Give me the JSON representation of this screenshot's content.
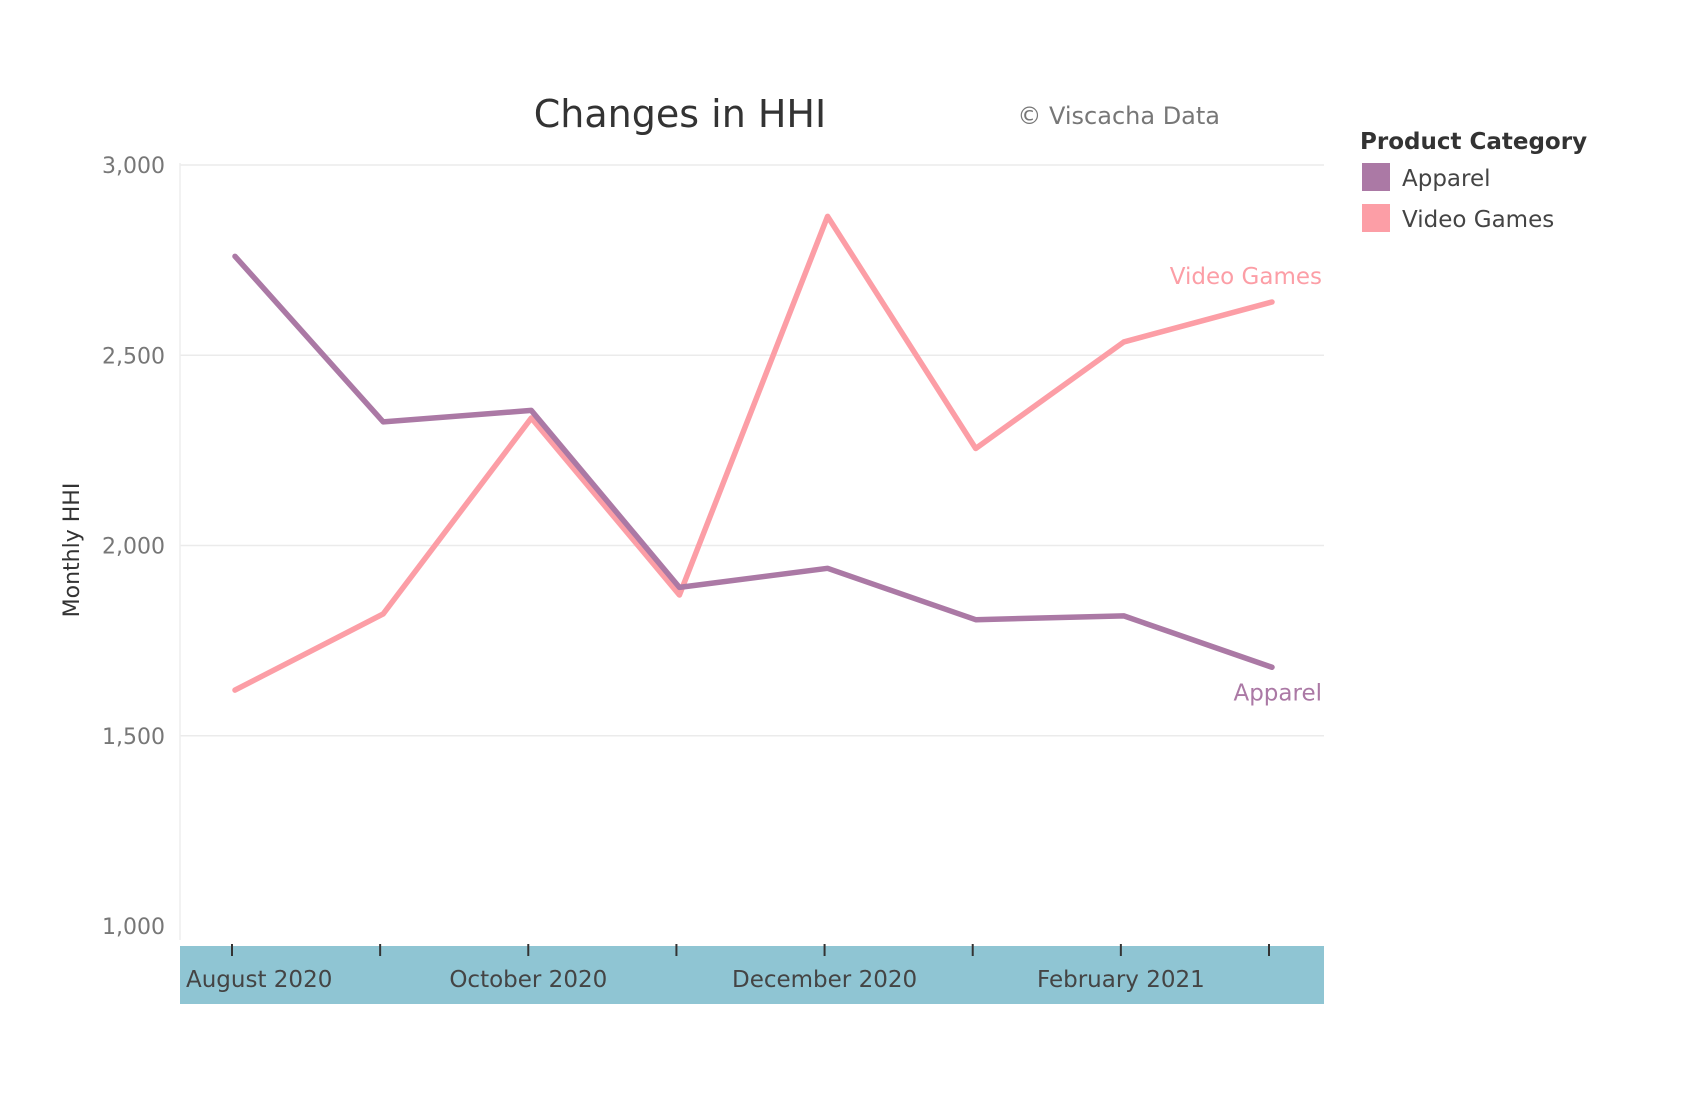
{
  "chart_data": {
    "type": "line",
    "title": "Changes in HHI",
    "credit": "© Viscacha Data",
    "ylabel": "Monthly HHI",
    "ylim": [
      1000,
      3000
    ],
    "yticks": [
      1000,
      1500,
      2000,
      2500,
      3000
    ],
    "ytick_labels": [
      "1,000",
      "1,500",
      "2,000",
      "2,500",
      "3,000"
    ],
    "x": [
      "2020-08",
      "2020-09",
      "2020-10",
      "2020-11",
      "2020-12",
      "2021-01",
      "2021-02",
      "2021-03"
    ],
    "x_tick_labels": [
      {
        "x": "2020-08",
        "label": "August 2020"
      },
      {
        "x": "2020-10",
        "label": "October 2020"
      },
      {
        "x": "2020-12",
        "label": "December 2020"
      },
      {
        "x": "2021-02",
        "label": "February 2021"
      }
    ],
    "grid": true,
    "legend": {
      "title": "Product Category",
      "placement": "right"
    },
    "axis_band_color": "#8fc5d3",
    "series": [
      {
        "name": "Apparel",
        "color": "#ab79a5",
        "values": [
          2760,
          2325,
          2355,
          1890,
          1940,
          1805,
          1815,
          1680
        ]
      },
      {
        "name": "Video Games",
        "color": "#fc9ea6",
        "values": [
          1620,
          1820,
          2335,
          1870,
          2865,
          2255,
          2535,
          2640
        ]
      }
    ]
  }
}
